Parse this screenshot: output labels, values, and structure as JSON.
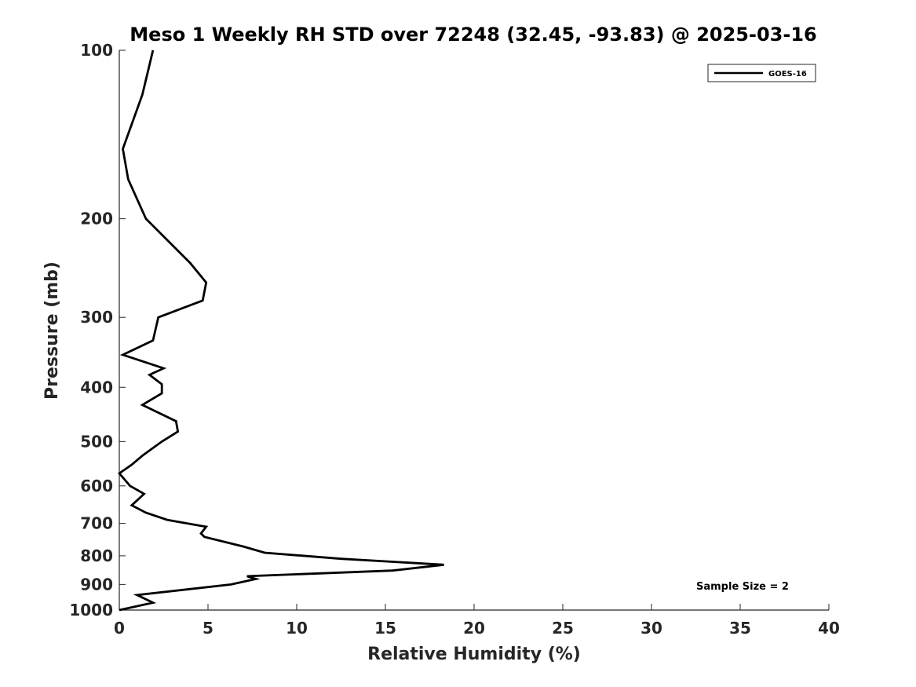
{
  "chart_data": {
    "type": "line",
    "title": "Meso 1 Weekly RH STD over 72248 (32.45, -93.83) @ 2025-03-16",
    "xlabel": "Relative Humidity (%)",
    "ylabel": "Pressure (mb)",
    "xlim": [
      0,
      40
    ],
    "ylim": [
      100,
      1000
    ],
    "y_scale": "log",
    "y_reversed": true,
    "grid": false,
    "legend_position": "top-right",
    "x_ticks": [
      0,
      5,
      10,
      15,
      20,
      25,
      30,
      35,
      40
    ],
    "y_ticks": [
      100,
      200,
      300,
      400,
      500,
      600,
      700,
      800,
      900,
      1000
    ],
    "annotation": "Sample Size = 2",
    "series": [
      {
        "name": "GOES-16",
        "color": "#000000",
        "x": [
          1.9,
          1.3,
          0.2,
          0.5,
          1.5,
          4.0,
          4.9,
          4.7,
          2.2,
          1.9,
          0.2,
          2.5,
          1.7,
          2.4,
          2.4,
          1.3,
          3.2,
          3.3,
          2.4,
          1.3,
          0.7,
          0.0,
          0.6,
          1.4,
          0.7,
          1.5,
          2.7,
          4.9,
          4.6,
          4.8,
          7.0,
          8.2,
          12.5,
          18.3,
          15.4,
          7.2,
          7.7,
          6.3,
          1.0,
          1.9,
          0.0
        ],
        "y": [
          100,
          120,
          150,
          170,
          200,
          240,
          260,
          280,
          300,
          330,
          350,
          370,
          380,
          395,
          410,
          430,
          460,
          480,
          500,
          530,
          550,
          570,
          600,
          620,
          650,
          670,
          690,
          710,
          730,
          740,
          770,
          790,
          810,
          830,
          850,
          870,
          880,
          900,
          940,
          970,
          1000
        ]
      }
    ]
  }
}
